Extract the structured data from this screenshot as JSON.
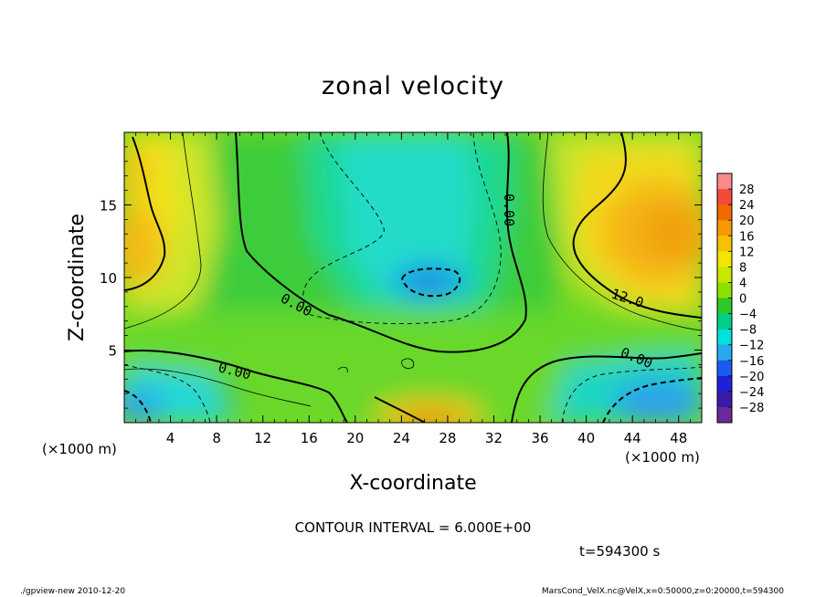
{
  "chart_data": {
    "type": "heatmap",
    "title": "zonal velocity",
    "xlabel": "X-coordinate",
    "ylabel": "Z-coordinate",
    "x_unit_left": "(×1000 m)",
    "x_unit_right": "(×1000 m)",
    "xlim": [
      0,
      50
    ],
    "ylim": [
      0,
      20
    ],
    "x_ticks": [
      "4",
      "8",
      "12",
      "16",
      "20",
      "24",
      "28",
      "32",
      "36",
      "40",
      "44",
      "48"
    ],
    "y_ticks": [
      "5",
      "10",
      "15"
    ],
    "colorbar": {
      "labels": [
        "28",
        "24",
        "20",
        "16",
        "12",
        "8",
        "4",
        "0",
        "-4",
        "-8",
        "-12",
        "-16",
        "-20",
        "-24",
        "-28"
      ],
      "colors": [
        "#fa8a8a",
        "#f54a3a",
        "#f06a00",
        "#f59a00",
        "#f7c000",
        "#f2e600",
        "#c8e600",
        "#8ee000",
        "#2ec82a",
        "#00cf8a",
        "#00e0dc",
        "#2aa8f0",
        "#1a5cf0",
        "#2020d8",
        "#3a1aa8",
        "#6a2a9a"
      ]
    },
    "contour_labels": [
      "0.00",
      "0.00",
      "0.00",
      "0.00",
      "12.0"
    ],
    "contour_interval_text": "CONTOUR INTERVAL = 6.000E+00",
    "time_text": "t=594300 s"
  },
  "footer": {
    "left": "./gpview-new  2010-12-20",
    "right": "MarsCond_VelX.nc@VelX,x=0:50000,z=0:20000,t=594300"
  }
}
